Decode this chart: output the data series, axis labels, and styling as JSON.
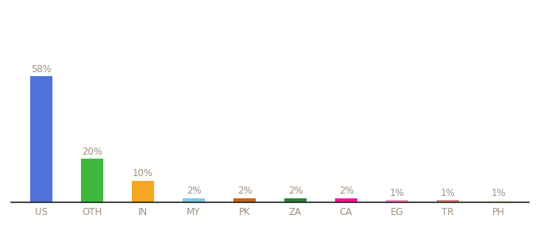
{
  "categories": [
    "US",
    "OTH",
    "IN",
    "MY",
    "PK",
    "ZA",
    "CA",
    "EG",
    "TR",
    "PH"
  ],
  "values": [
    58,
    20,
    10,
    2,
    2,
    2,
    2,
    1,
    1,
    1
  ],
  "labels": [
    "58%",
    "20%",
    "10%",
    "2%",
    "2%",
    "2%",
    "2%",
    "1%",
    "1%",
    "1%"
  ],
  "bar_colors": [
    "#4f72d9",
    "#3dba3d",
    "#f5a623",
    "#7ec8e3",
    "#c8651a",
    "#2e7d32",
    "#ff1493",
    "#ff91c8",
    "#d98a80",
    "#f5f0dc"
  ],
  "ylim": [
    0,
    80
  ],
  "background_color": "#ffffff",
  "label_color": "#a09080",
  "label_fontsize": 8.5,
  "tick_fontsize": 8.5,
  "tick_color": "#a09080",
  "bar_width": 0.45
}
